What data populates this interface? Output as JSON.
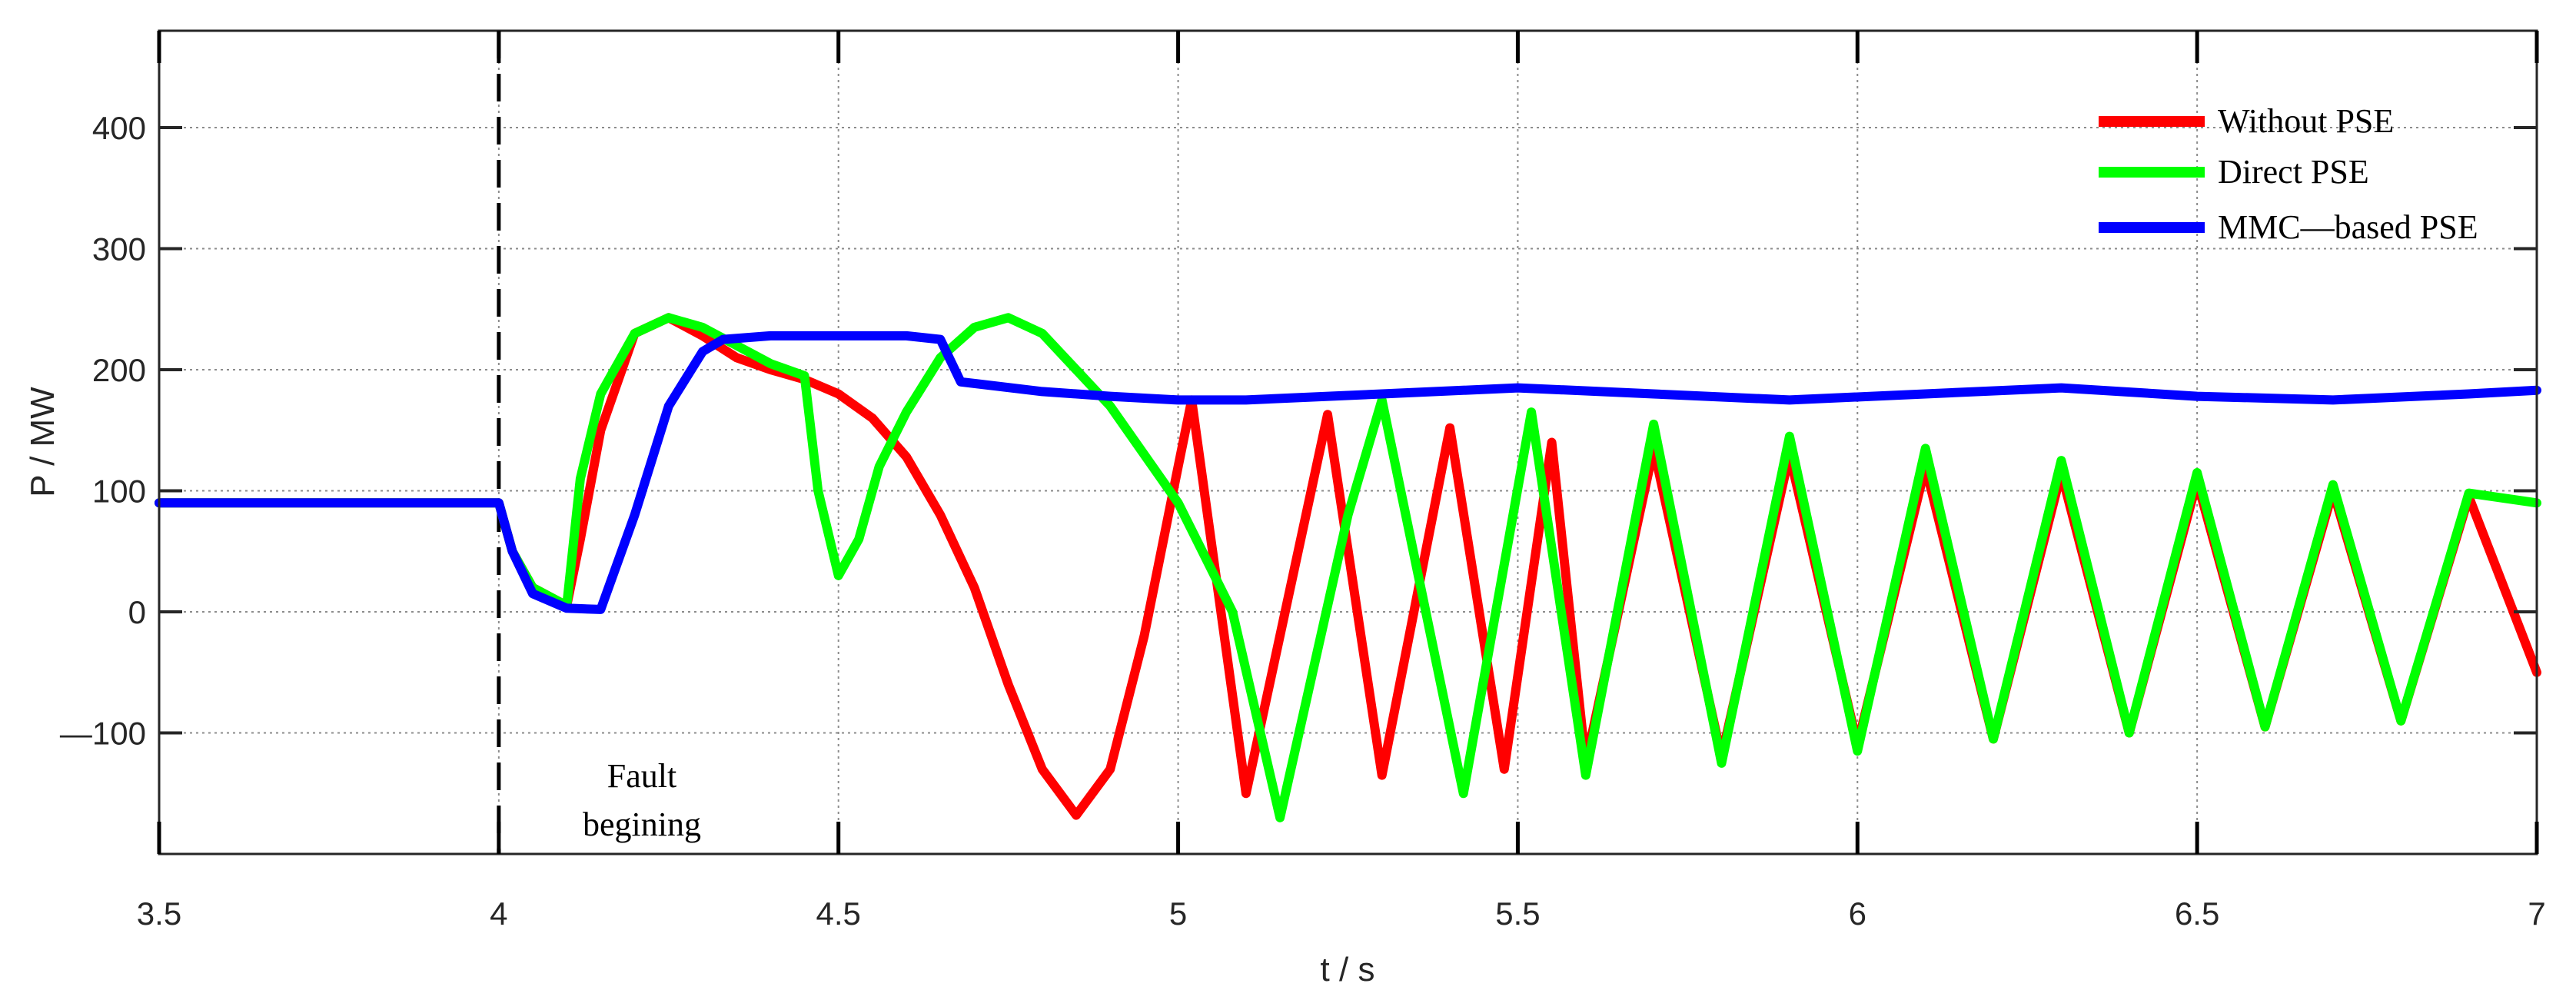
{
  "chart_data": {
    "type": "line",
    "xlabel": "t / s",
    "ylabel": "P / MW",
    "xlim": [
      3.5,
      7
    ],
    "ylim": [
      -200,
      480
    ],
    "x_ticks": [
      3.5,
      4,
      4.5,
      5,
      5.5,
      6,
      6.5,
      7
    ],
    "x_tick_labels": [
      "3.5",
      "4",
      "4.5",
      "5",
      "5.5",
      "6",
      "6.5",
      "7"
    ],
    "y_ticks": [
      -100,
      0,
      100,
      200,
      300,
      400
    ],
    "y_tick_labels": [
      "—100",
      "0",
      "100",
      "200",
      "300",
      "400"
    ],
    "grid": true,
    "legend_position": "top-right",
    "fault_time": 4.0,
    "annotation": [
      "Fault",
      "begining"
    ],
    "colors": {
      "without": "#ff0000",
      "direct": "#00ff00",
      "mmc": "#0000ff"
    },
    "series": [
      {
        "name": "Without PSE",
        "color": "#ff0000",
        "x": [
          3.5,
          4.0,
          4.02,
          4.05,
          4.1,
          4.12,
          4.15,
          4.2,
          4.25,
          4.3,
          4.35,
          4.4,
          4.45,
          4.5,
          4.55,
          4.6,
          4.65,
          4.7,
          4.75,
          4.8,
          4.85,
          4.9,
          4.95,
          5.0,
          5.02,
          5.1,
          5.22,
          5.3,
          5.4,
          5.48,
          5.55,
          5.6,
          5.7,
          5.8,
          5.9,
          6.0,
          6.1,
          6.2,
          6.3,
          6.4,
          6.5,
          6.6,
          6.7,
          6.8,
          6.9,
          7.0
        ],
        "y": [
          90,
          90,
          50,
          20,
          5,
          60,
          150,
          230,
          243,
          228,
          210,
          200,
          192,
          180,
          160,
          128,
          80,
          20,
          -60,
          -130,
          -168,
          -130,
          -20,
          120,
          175,
          -150,
          163,
          -135,
          152,
          -130,
          140,
          -125,
          135,
          -120,
          130,
          -110,
          120,
          -105,
          115,
          -100,
          108,
          -95,
          100,
          -90,
          95,
          -50
        ]
      },
      {
        "name": "Direct PSE",
        "color": "#00ff00",
        "x": [
          3.5,
          4.0,
          4.02,
          4.05,
          4.1,
          4.12,
          4.15,
          4.2,
          4.25,
          4.3,
          4.35,
          4.4,
          4.45,
          4.47,
          4.5,
          4.53,
          4.56,
          4.6,
          4.65,
          4.7,
          4.75,
          4.8,
          4.9,
          5.0,
          5.08,
          5.15,
          5.25,
          5.3,
          5.42,
          5.52,
          5.6,
          5.7,
          5.8,
          5.9,
          6.0,
          6.1,
          6.2,
          6.3,
          6.4,
          6.5,
          6.6,
          6.7,
          6.8,
          6.9,
          7.0
        ],
        "y": [
          90,
          90,
          50,
          20,
          5,
          110,
          180,
          230,
          243,
          235,
          220,
          205,
          195,
          100,
          30,
          60,
          120,
          165,
          210,
          235,
          243,
          230,
          170,
          90,
          0,
          -170,
          80,
          175,
          -150,
          165,
          -135,
          155,
          -125,
          145,
          -115,
          135,
          -105,
          125,
          -100,
          115,
          -95,
          105,
          -90,
          98,
          90
        ]
      },
      {
        "name": "MMC—based PSE",
        "color": "#0000ff",
        "x": [
          3.5,
          4.0,
          4.02,
          4.05,
          4.1,
          4.15,
          4.2,
          4.25,
          4.3,
          4.33,
          4.4,
          4.5,
          4.6,
          4.65,
          4.68,
          4.8,
          4.9,
          5.0,
          5.1,
          5.3,
          5.5,
          5.7,
          5.9,
          6.1,
          6.3,
          6.5,
          6.7,
          6.9,
          7.0
        ],
        "y": [
          90,
          90,
          50,
          15,
          3,
          2,
          80,
          170,
          215,
          225,
          228,
          228,
          228,
          225,
          190,
          182,
          178,
          175,
          175,
          180,
          185,
          180,
          175,
          180,
          185,
          178,
          175,
          180,
          183
        ]
      }
    ]
  }
}
